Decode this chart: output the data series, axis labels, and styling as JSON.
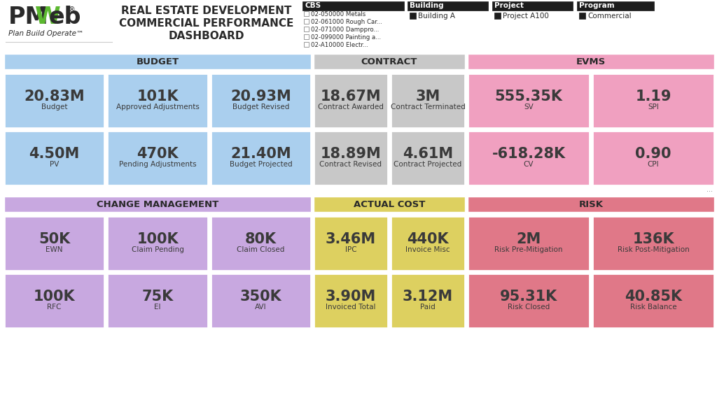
{
  "filter_cbs_items": [
    "02-050000 Metals",
    "02-061000 Rough Car...",
    "02-071000 Damppro...",
    "02-099000 Painting a...",
    "02-A10000 Electr..."
  ],
  "filter_building": "Building A",
  "filter_project": "Project A100",
  "filter_program": "Commercial",
  "section1_bg": "#aacfee",
  "section1_title": "BUDGET",
  "section1_cells": [
    {
      "value": "20.83M",
      "label": "Budget"
    },
    {
      "value": "101K",
      "label": "Approved Adjustments"
    },
    {
      "value": "20.93M",
      "label": "Budget Revised"
    },
    {
      "value": "4.50M",
      "label": "PV"
    },
    {
      "value": "470K",
      "label": "Pending Adjustments"
    },
    {
      "value": "21.40M",
      "label": "Budget Projected"
    }
  ],
  "section2_bg": "#c8c8c8",
  "section2_title": "CONTRACT",
  "section2_cells": [
    {
      "value": "18.67M",
      "label": "Contract Awarded"
    },
    {
      "value": "3M",
      "label": "Contract Terminated"
    },
    {
      "value": "18.89M",
      "label": "Contract Revised"
    },
    {
      "value": "4.61M",
      "label": "Contract Projected"
    }
  ],
  "section3_bg": "#f0a0c0",
  "section3_title": "EVMS",
  "section3_cells": [
    {
      "value": "555.35K",
      "label": "SV"
    },
    {
      "value": "1.19",
      "label": "SPI"
    },
    {
      "value": "-618.28K",
      "label": "CV"
    },
    {
      "value": "0.90",
      "label": "CPI"
    }
  ],
  "section4_bg": "#c8a8e0",
  "section4_title": "CHANGE MANAGEMENT",
  "section4_cells": [
    {
      "value": "50K",
      "label": "EWN"
    },
    {
      "value": "100K",
      "label": "Claim Pending"
    },
    {
      "value": "80K",
      "label": "Claim Closed"
    },
    {
      "value": "100K",
      "label": "RFC"
    },
    {
      "value": "75K",
      "label": "EI"
    },
    {
      "value": "350K",
      "label": "AVI"
    }
  ],
  "section5_bg": "#ddd060",
  "section5_title": "ACTUAL COST",
  "section5_cells": [
    {
      "value": "3.46M",
      "label": "IPC"
    },
    {
      "value": "440K",
      "label": "Invoice Misc"
    },
    {
      "value": "3.90M",
      "label": "Invoiced Total"
    },
    {
      "value": "3.12M",
      "label": "Paid"
    }
  ],
  "section6_bg": "#e07888",
  "section6_title": "RISK",
  "section6_cells": [
    {
      "value": "2M",
      "label": "Risk Pre-Mitigation"
    },
    {
      "value": "136K",
      "label": "Risk Post-Mitigation"
    },
    {
      "value": "95.31K",
      "label": "Risk Closed"
    },
    {
      "value": "40.85K",
      "label": "Risk Balance"
    }
  ]
}
